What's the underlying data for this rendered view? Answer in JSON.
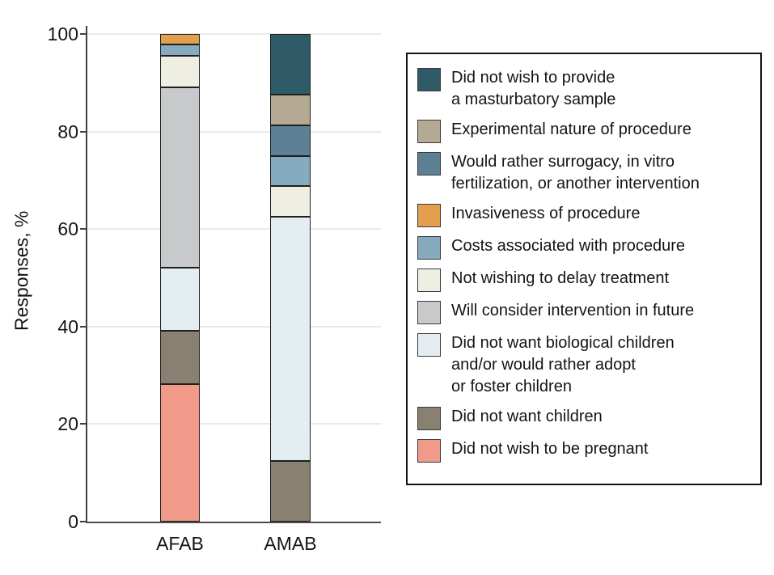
{
  "figure": {
    "background": "#ffffff",
    "axis_color": "#3f3f3f",
    "gridline_color": "#e9e9e9"
  },
  "chart_data": {
    "type": "bar",
    "stacked": true,
    "title": "",
    "ylabel": "Responses, %",
    "xlabel": "",
    "categories": [
      "AFAB",
      "AMAB"
    ],
    "ylim": [
      0,
      100
    ],
    "yticks": [
      0,
      20,
      40,
      60,
      80,
      100
    ],
    "grid": "horizontal",
    "legend_position": "right",
    "series": [
      {
        "name": "Did not wish to provide a masturbatory sample",
        "label_lines": [
          "Did not wish to provide",
          "a masturbatory sample"
        ],
        "color": "#2F5A68",
        "values": [
          0,
          12.5
        ]
      },
      {
        "name": "Experimental nature of procedure",
        "label_lines": [
          "Experimental nature of procedure"
        ],
        "color": "#B4AA94",
        "values": [
          0,
          6.25
        ]
      },
      {
        "name": "Would rather surrogacy, in vitro fertilization, or another intervention",
        "label_lines": [
          "Would rather surrogacy, in vitro",
          "fertilization, or another intervention"
        ],
        "color": "#5D8095",
        "values": [
          0,
          6.25
        ]
      },
      {
        "name": "Invasiveness of procedure",
        "label_lines": [
          "Invasiveness of procedure"
        ],
        "color": "#E2A04F",
        "values": [
          2.2,
          0
        ]
      },
      {
        "name": "Costs associated with procedure",
        "label_lines": [
          "Costs associated with procedure"
        ],
        "color": "#86AABE",
        "values": [
          2.2,
          6.25
        ]
      },
      {
        "name": "Not wishing to delay treatment",
        "label_lines": [
          "Not wishing to delay treatment"
        ],
        "color": "#EFEEE3",
        "values": [
          6.5,
          6.25
        ]
      },
      {
        "name": "Will consider intervention in future",
        "label_lines": [
          "Will consider intervention in future"
        ],
        "color": "#C8C9CB",
        "values": [
          37.0,
          0
        ]
      },
      {
        "name": "Did not want biological children and/or would rather adopt or foster children",
        "label_lines": [
          "Did not want biological children",
          "and/or would rather adopt",
          "or foster children"
        ],
        "color": "#E4EDF2",
        "values": [
          13.0,
          50.0
        ]
      },
      {
        "name": "Did not want children",
        "label_lines": [
          "Did not want children"
        ],
        "color": "#8A8071",
        "values": [
          10.9,
          12.5
        ]
      },
      {
        "name": "Did not wish to be pregnant",
        "label_lines": [
          "Did not wish to be pregnant"
        ],
        "color": "#F19A89",
        "values": [
          28.2,
          0
        ]
      }
    ]
  }
}
